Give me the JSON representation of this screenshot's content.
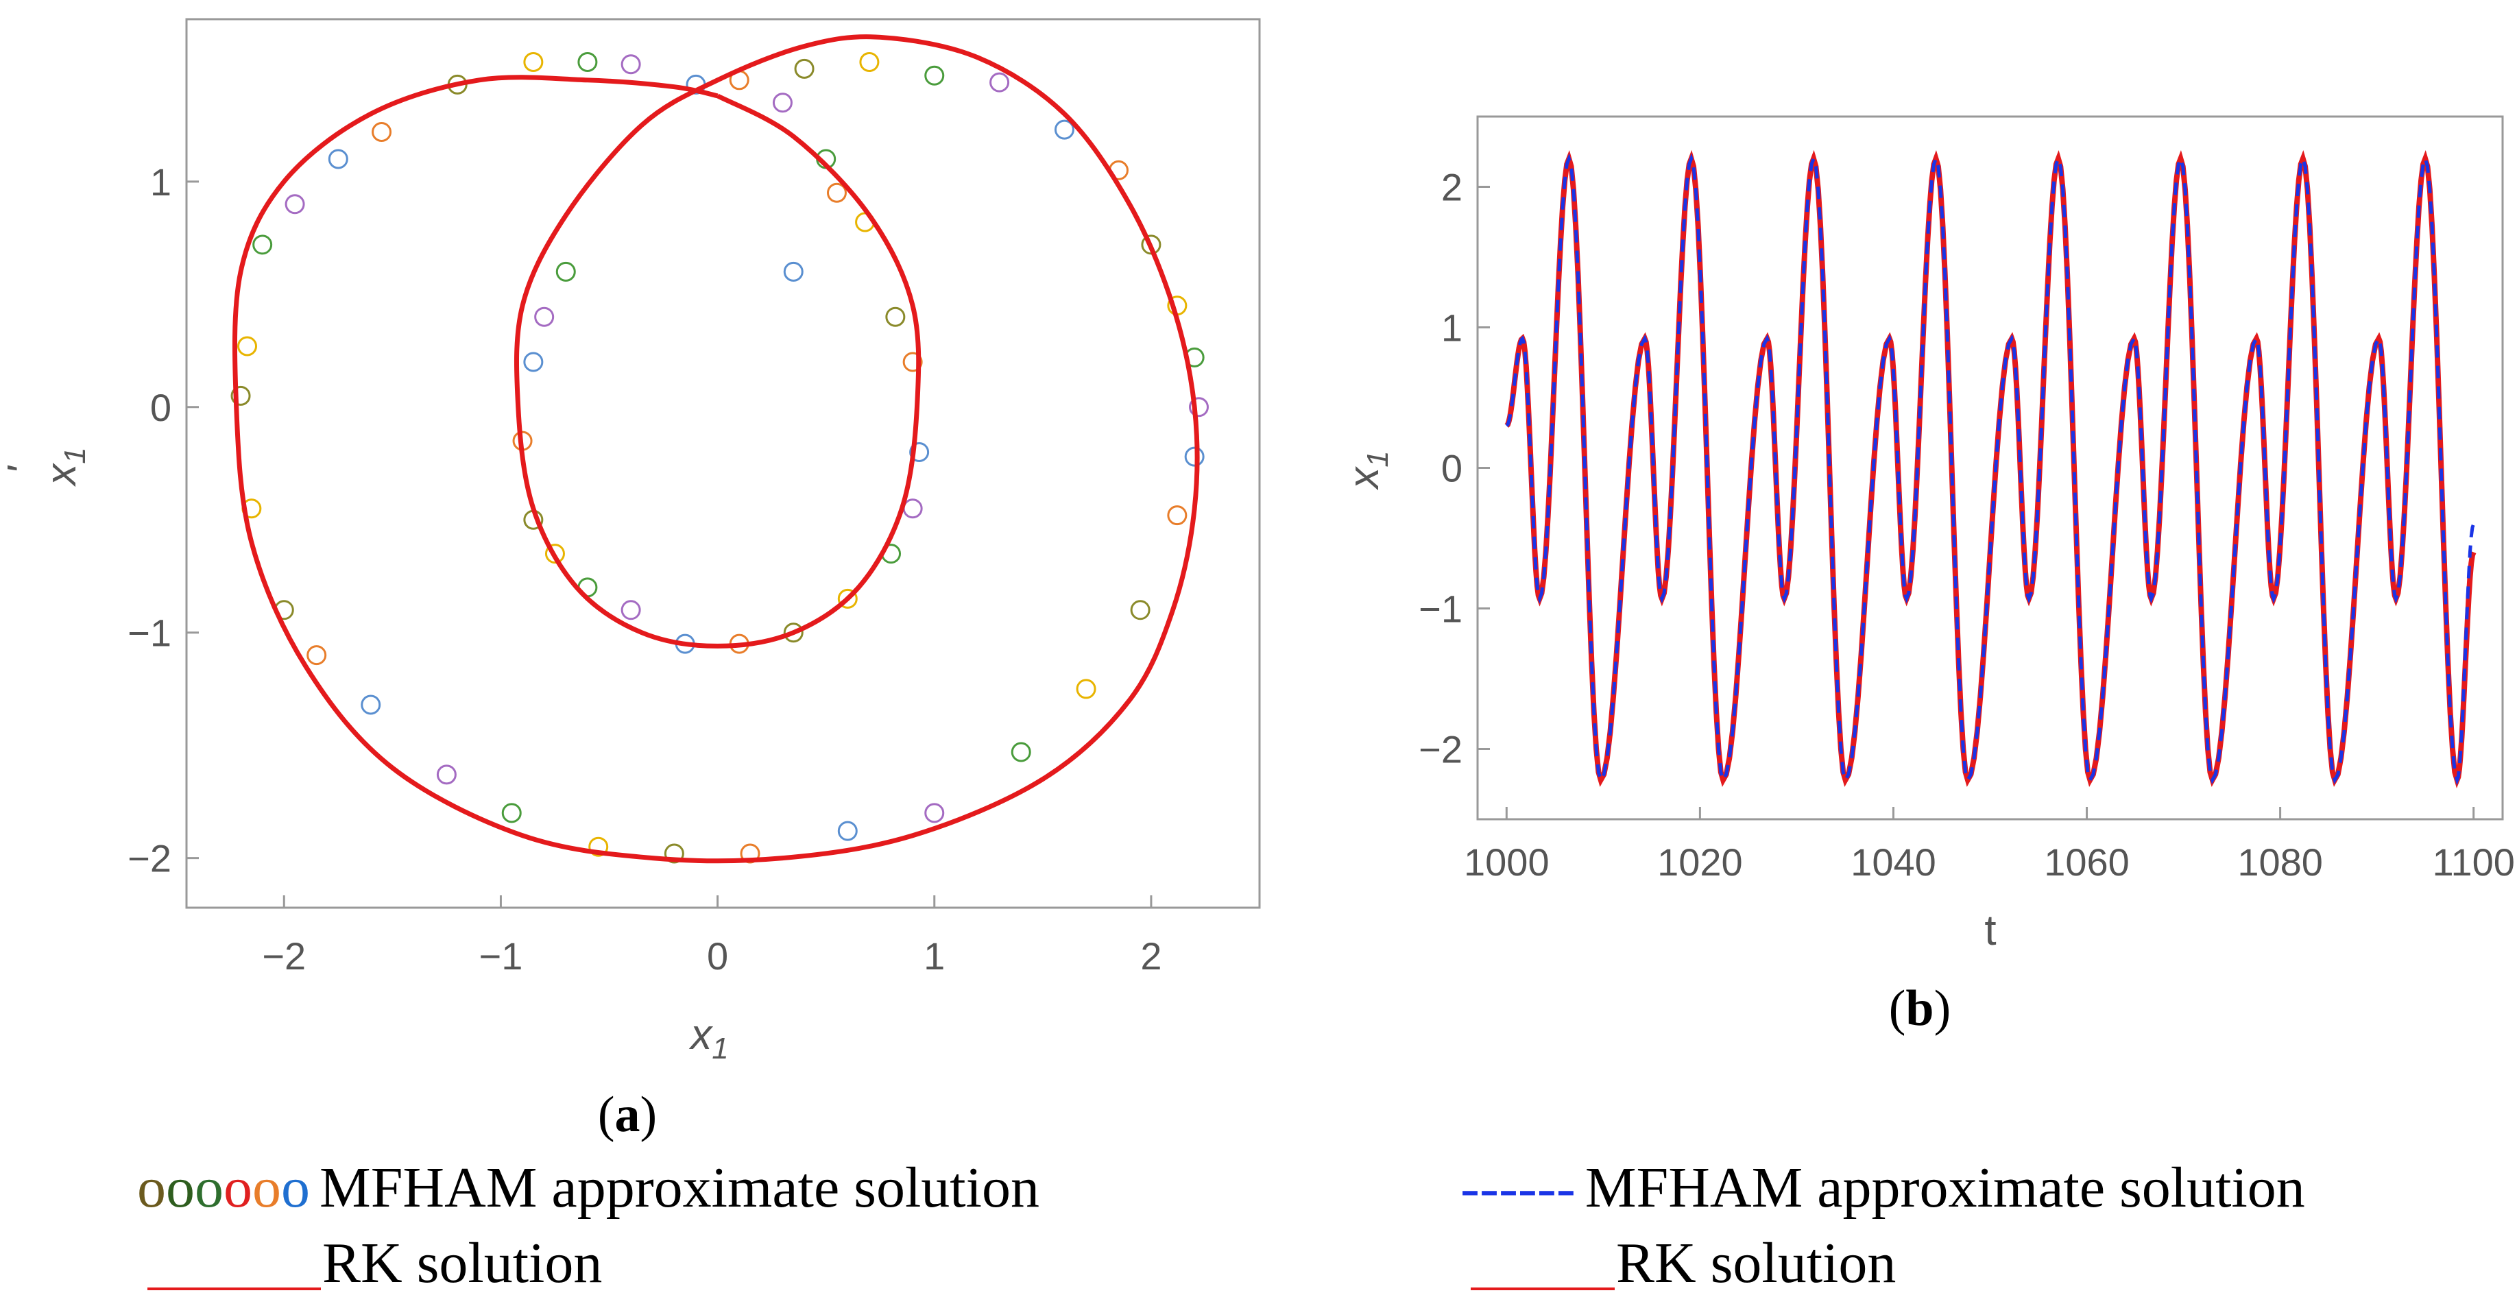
{
  "colors": {
    "rk": "#e41a1c",
    "mfham_b": "#1a34e6",
    "markers": [
      "#8a8a2a",
      "#e8b400",
      "#4a9c3c",
      "#a46bc2",
      "#5a8fd0",
      "#e87d2a"
    ],
    "legend_circles": [
      "#6b5a1e",
      "#2e5d1e",
      "#2e6e2e",
      "#e02020",
      "#e87d2a",
      "#1f6fd0"
    ]
  },
  "chart_data": [
    {
      "id": "a",
      "type": "scatter",
      "panel_label": {
        "open": "(",
        "letter": "a",
        "close": ")"
      },
      "xlabel": "x",
      "xlabel_sub": "1",
      "ylabel": "x",
      "ylabel_sub": "1",
      "ylabel_prime": "'",
      "xlim": [
        -2.45,
        2.5
      ],
      "ylim": [
        -2.22,
        1.72
      ],
      "xticks": [
        -2,
        -1,
        0,
        1,
        2
      ],
      "xtick_labels": [
        "−2",
        "−1",
        "0",
        "1",
        "2"
      ],
      "yticks": [
        -2,
        -1,
        0,
        1
      ],
      "ytick_labels": [
        "−2",
        "−1",
        "0",
        "1"
      ],
      "series": [
        {
          "name": "RK solution",
          "style": "line",
          "description": "closed limit-cycle orbit",
          "x": [
            0.0,
            0.35,
            0.7,
            0.9,
            0.92,
            0.85,
            0.65,
            0.35,
            0.0,
            -0.35,
            -0.65,
            -0.85,
            -0.92,
            -0.9,
            -0.7,
            -0.35,
            0.0,
            0.4,
            0.75,
            1.2,
            1.6,
            1.9,
            2.1,
            2.2,
            2.2,
            2.1,
            1.9,
            1.5,
            0.9,
            0.3,
            -0.3,
            -0.9,
            -1.5,
            -1.9,
            -2.15,
            -2.22,
            -2.2,
            -2.0,
            -1.6,
            -1.1,
            -0.6,
            -0.2,
            0.0
          ],
          "y": [
            1.38,
            1.2,
            0.85,
            0.45,
            0.0,
            -0.45,
            -0.8,
            -1.0,
            -1.06,
            -1.0,
            -0.8,
            -0.45,
            0.0,
            0.45,
            0.85,
            1.25,
            1.45,
            1.6,
            1.64,
            1.55,
            1.3,
            0.9,
            0.45,
            0.0,
            -0.45,
            -0.9,
            -1.3,
            -1.65,
            -1.9,
            -2.0,
            -2.0,
            -1.9,
            -1.6,
            -1.15,
            -0.6,
            0.0,
            0.6,
            1.0,
            1.3,
            1.45,
            1.45,
            1.42,
            1.38
          ]
        },
        {
          "name": "MFHAM approximate solution",
          "style": "markers",
          "x": [
            -2.2,
            -2.17,
            -2.1,
            -1.95,
            -1.75,
            -1.55,
            -1.2,
            -0.85,
            -0.6,
            -0.4,
            -0.1,
            0.1,
            0.4,
            0.7,
            1.0,
            1.3,
            1.6,
            1.85,
            2.0,
            2.12,
            2.2,
            2.22,
            2.2,
            2.12,
            1.95,
            1.7,
            1.4,
            1.0,
            0.6,
            0.15,
            -0.2,
            -0.55,
            -0.95,
            -1.25,
            -1.6,
            -1.85,
            -2.0,
            -2.15,
            -0.7,
            -0.8,
            -0.85,
            -0.9,
            -0.85,
            -0.75,
            -0.6,
            -0.4,
            -0.15,
            0.1,
            0.35,
            0.6,
            0.8,
            0.9,
            0.93,
            0.9,
            0.82,
            0.68,
            0.5,
            0.3,
            0.35,
            0.55
          ],
          "y": [
            0.05,
            0.27,
            0.72,
            0.9,
            1.1,
            1.22,
            1.43,
            1.53,
            1.53,
            1.52,
            1.43,
            1.45,
            1.5,
            1.53,
            1.47,
            1.44,
            1.23,
            1.05,
            0.72,
            0.45,
            0.22,
            0.0,
            -0.22,
            -0.48,
            -0.9,
            -1.25,
            -1.53,
            -1.8,
            -1.88,
            -1.98,
            -1.98,
            -1.95,
            -1.8,
            -1.63,
            -1.32,
            -1.1,
            -0.9,
            -0.45,
            0.6,
            0.4,
            0.2,
            -0.15,
            -0.5,
            -0.65,
            -0.8,
            -0.9,
            -1.05,
            -1.05,
            -1.0,
            -0.85,
            -0.65,
            -0.45,
            -0.2,
            0.2,
            0.4,
            0.82,
            1.1,
            1.35,
            0.6,
            0.95
          ]
        }
      ]
    },
    {
      "id": "b",
      "type": "line",
      "panel_label": {
        "open": "(",
        "letter": "b",
        "close": ")"
      },
      "xlabel": "t",
      "ylabel": "x",
      "ylabel_sub": "1",
      "xlim": [
        997,
        1103
      ],
      "ylim": [
        -2.5,
        2.5
      ],
      "xticks": [
        1000,
        1020,
        1040,
        1060,
        1080,
        1100
      ],
      "xtick_labels": [
        "1000",
        "1020",
        "1040",
        "1060",
        "1080",
        "1100"
      ],
      "yticks": [
        -2,
        -1,
        0,
        1,
        2
      ],
      "ytick_labels": [
        "−2",
        "−1",
        "0",
        "1",
        "2"
      ],
      "period": 12.65,
      "peaks": {
        "major_max": 2.2,
        "minor_max": 0.92,
        "min": -0.93,
        "major_min": -2.22
      },
      "series": [
        {
          "name": "RK solution",
          "style": "solid",
          "t_start": 1000,
          "t_end": 1100,
          "start_value": 0.3,
          "end_value": -0.6
        },
        {
          "name": "MFHAM approximate solution",
          "style": "dashed",
          "t_start": 1000,
          "t_end": 1100,
          "start_value": 0.3,
          "end_value": -0.4
        }
      ]
    }
  ],
  "legend_left": {
    "marker_glyphs": "oooooo",
    "mfham_label": "MFHAM approximate solution",
    "rk_label": "RK solution"
  },
  "legend_right": {
    "dash_glyphs": "------",
    "mfham_label": "MFHAM approximate solution",
    "rk_label": "RK solution"
  }
}
